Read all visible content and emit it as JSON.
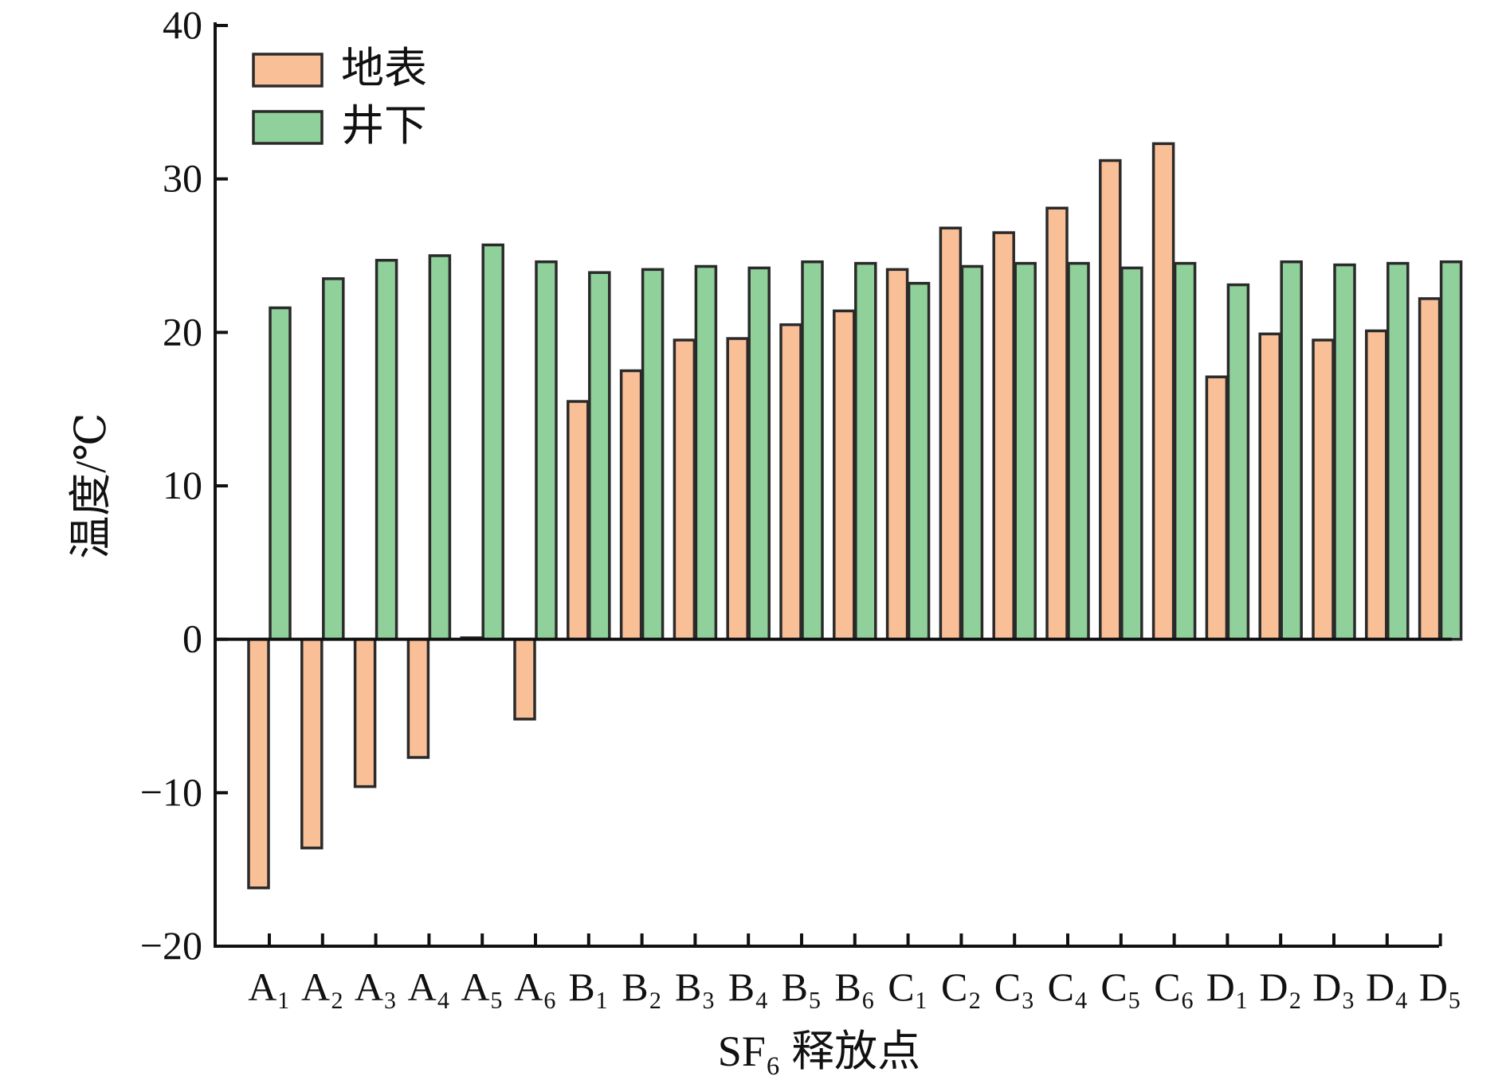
{
  "chart_data": {
    "type": "bar",
    "title": "",
    "xlabel": "SF₆ 释放点",
    "ylabel": "温度/℃",
    "ylim": [
      -20,
      40
    ],
    "yticks": [
      -20,
      -10,
      0,
      10,
      20,
      30,
      40
    ],
    "grid": false,
    "legend_position": "top-left",
    "categories": [
      "A₁",
      "A₂",
      "A₃",
      "A₄",
      "A₅",
      "A₆",
      "B₁",
      "B₂",
      "B₃",
      "B₄",
      "B₅",
      "B₆",
      "C₁",
      "C₂",
      "C₃",
      "C₄",
      "C₅",
      "C₆",
      "D₁",
      "D₂",
      "D₃",
      "D₄",
      "D₅"
    ],
    "series": [
      {
        "name": "地表",
        "color": "#F9BF97",
        "values": [
          -16.2,
          -13.6,
          -9.6,
          -7.7,
          0.1,
          -5.2,
          15.5,
          17.5,
          19.5,
          19.6,
          20.5,
          21.4,
          24.1,
          26.8,
          26.5,
          28.1,
          31.2,
          32.3,
          17.1,
          19.9,
          19.5,
          20.1,
          22.2
        ]
      },
      {
        "name": "井下",
        "color": "#8FD09B",
        "values": [
          21.6,
          23.5,
          24.7,
          25.0,
          25.7,
          24.6,
          23.9,
          24.1,
          24.3,
          24.2,
          24.6,
          24.5,
          23.2,
          24.3,
          24.5,
          24.5,
          24.2,
          24.5,
          23.1,
          24.6,
          24.4,
          24.5,
          24.6
        ]
      }
    ]
  }
}
